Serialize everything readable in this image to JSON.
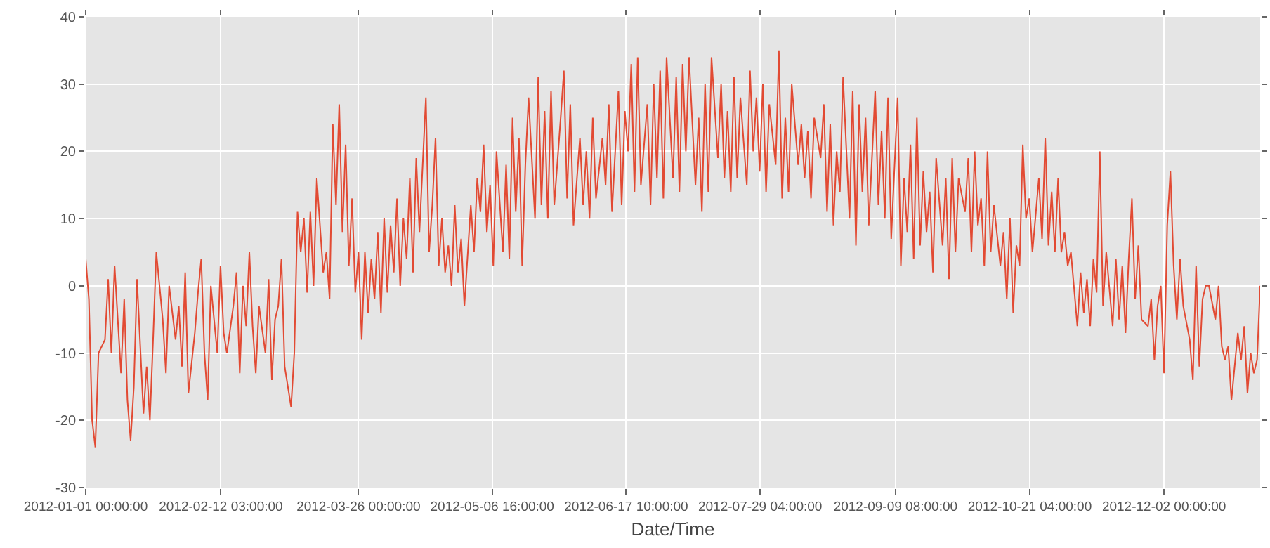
{
  "chart_data": {
    "type": "line",
    "xlabel": "Date/Time",
    "xlim": [
      "2012-01-01T00:00",
      "2012-12-31T23:00"
    ],
    "xticks": [
      {
        "value": "2012-01-01T00:00",
        "label": "2012-01-01 00:00:00"
      },
      {
        "value": "2012-02-12T03:00",
        "label": "2012-02-12 03:00:00"
      },
      {
        "value": "2012-03-26T00:00",
        "label": "2012-03-26 00:00:00"
      },
      {
        "value": "2012-05-06T16:00",
        "label": "2012-05-06 16:00:00"
      },
      {
        "value": "2012-06-17T10:00",
        "label": "2012-06-17 10:00:00"
      },
      {
        "value": "2012-07-29T04:00",
        "label": "2012-07-29 04:00:00"
      },
      {
        "value": "2012-09-09T08:00",
        "label": "2012-09-09 08:00:00"
      },
      {
        "value": "2012-10-21T04:00",
        "label": "2012-10-21 04:00:00"
      },
      {
        "value": "2012-12-02T00:00",
        "label": "2012-12-02 00:00:00"
      }
    ],
    "ylim": [
      -30,
      40
    ],
    "yticks": [
      -30,
      -20,
      -10,
      0,
      10,
      20,
      30,
      40
    ],
    "grid": true,
    "x": [
      "2012-01-01",
      "2012-01-02",
      "2012-01-03",
      "2012-01-04",
      "2012-01-05",
      "2012-01-07",
      "2012-01-08",
      "2012-01-09",
      "2012-01-10",
      "2012-01-12",
      "2012-01-13",
      "2012-01-14",
      "2012-01-15",
      "2012-01-16",
      "2012-01-17",
      "2012-01-19",
      "2012-01-20",
      "2012-01-21",
      "2012-01-22",
      "2012-01-23",
      "2012-01-25",
      "2012-01-26",
      "2012-01-27",
      "2012-01-29",
      "2012-01-30",
      "2012-01-31",
      "2012-02-01",
      "2012-02-02",
      "2012-02-04",
      "2012-02-05",
      "2012-02-06",
      "2012-02-07",
      "2012-02-08",
      "2012-02-09",
      "2012-02-11",
      "2012-02-12",
      "2012-02-13",
      "2012-02-14",
      "2012-02-16",
      "2012-02-17",
      "2012-02-18",
      "2012-02-19",
      "2012-02-20",
      "2012-02-21",
      "2012-02-22",
      "2012-02-23",
      "2012-02-24",
      "2012-02-26",
      "2012-02-27",
      "2012-02-28",
      "2012-02-29",
      "2012-03-01",
      "2012-03-02",
      "2012-03-03",
      "2012-03-05",
      "2012-03-06",
      "2012-03-07",
      "2012-03-08",
      "2012-03-09",
      "2012-03-10",
      "2012-03-11",
      "2012-03-12",
      "2012-03-13",
      "2012-03-15",
      "2012-03-16",
      "2012-03-17",
      "2012-03-18",
      "2012-03-19",
      "2012-03-20",
      "2012-03-21",
      "2012-03-22",
      "2012-03-23",
      "2012-03-24",
      "2012-03-25",
      "2012-03-26",
      "2012-03-27",
      "2012-03-28",
      "2012-03-29",
      "2012-03-30",
      "2012-03-31",
      "2012-04-01",
      "2012-04-02",
      "2012-04-03",
      "2012-04-04",
      "2012-04-05",
      "2012-04-06",
      "2012-04-07",
      "2012-04-08",
      "2012-04-09",
      "2012-04-10",
      "2012-04-11",
      "2012-04-12",
      "2012-04-13",
      "2012-04-14",
      "2012-04-16",
      "2012-04-17",
      "2012-04-18",
      "2012-04-19",
      "2012-04-20",
      "2012-04-21",
      "2012-04-22",
      "2012-04-23",
      "2012-04-24",
      "2012-04-25",
      "2012-04-26",
      "2012-04-27",
      "2012-04-28",
      "2012-04-30",
      "2012-05-01",
      "2012-05-02",
      "2012-05-03",
      "2012-05-04",
      "2012-05-05",
      "2012-05-06",
      "2012-05-07",
      "2012-05-08",
      "2012-05-10",
      "2012-05-11",
      "2012-05-12",
      "2012-05-13",
      "2012-05-14",
      "2012-05-15",
      "2012-05-16",
      "2012-05-17",
      "2012-05-18",
      "2012-05-20",
      "2012-05-21",
      "2012-05-22",
      "2012-05-23",
      "2012-05-24",
      "2012-05-25",
      "2012-05-26",
      "2012-05-28",
      "2012-05-29",
      "2012-05-30",
      "2012-05-31",
      "2012-06-01",
      "2012-06-03",
      "2012-06-04",
      "2012-06-05",
      "2012-06-06",
      "2012-06-07",
      "2012-06-08",
      "2012-06-10",
      "2012-06-11",
      "2012-06-12",
      "2012-06-13",
      "2012-06-15",
      "2012-06-16",
      "2012-06-17",
      "2012-06-18",
      "2012-06-19",
      "2012-06-20",
      "2012-06-21",
      "2012-06-22",
      "2012-06-24",
      "2012-06-25",
      "2012-06-26",
      "2012-06-27",
      "2012-06-28",
      "2012-06-29",
      "2012-06-30",
      "2012-07-02",
      "2012-07-03",
      "2012-07-04",
      "2012-07-05",
      "2012-07-06",
      "2012-07-07",
      "2012-07-09",
      "2012-07-10",
      "2012-07-11",
      "2012-07-12",
      "2012-07-13",
      "2012-07-14",
      "2012-07-16",
      "2012-07-17",
      "2012-07-18",
      "2012-07-19",
      "2012-07-20",
      "2012-07-21",
      "2012-07-22",
      "2012-07-23",
      "2012-07-25",
      "2012-07-26",
      "2012-07-27",
      "2012-07-28",
      "2012-07-29",
      "2012-07-30",
      "2012-07-31",
      "2012-08-01",
      "2012-08-03",
      "2012-08-04",
      "2012-08-05",
      "2012-08-06",
      "2012-08-07",
      "2012-08-08",
      "2012-08-10",
      "2012-08-11",
      "2012-08-12",
      "2012-08-13",
      "2012-08-14",
      "2012-08-15",
      "2012-08-17",
      "2012-08-18",
      "2012-08-19",
      "2012-08-20",
      "2012-08-21",
      "2012-08-22",
      "2012-08-23",
      "2012-08-24",
      "2012-08-26",
      "2012-08-27",
      "2012-08-28",
      "2012-08-29",
      "2012-08-30",
      "2012-08-31",
      "2012-09-01",
      "2012-09-03",
      "2012-09-04",
      "2012-09-05",
      "2012-09-06",
      "2012-09-07",
      "2012-09-08",
      "2012-09-10",
      "2012-09-11",
      "2012-09-12",
      "2012-09-13",
      "2012-09-14",
      "2012-09-15",
      "2012-09-16",
      "2012-09-17",
      "2012-09-18",
      "2012-09-19",
      "2012-09-20",
      "2012-09-21",
      "2012-09-22",
      "2012-09-24",
      "2012-09-25",
      "2012-09-26",
      "2012-09-27",
      "2012-09-28",
      "2012-09-29",
      "2012-10-01",
      "2012-10-02",
      "2012-10-03",
      "2012-10-04",
      "2012-10-05",
      "2012-10-06",
      "2012-10-07",
      "2012-10-08",
      "2012-10-09",
      "2012-10-10",
      "2012-10-12",
      "2012-10-13",
      "2012-10-14",
      "2012-10-15",
      "2012-10-16",
      "2012-10-17",
      "2012-10-18",
      "2012-10-19",
      "2012-10-20",
      "2012-10-21",
      "2012-10-22",
      "2012-10-24",
      "2012-10-25",
      "2012-10-26",
      "2012-10-27",
      "2012-10-28",
      "2012-10-29",
      "2012-10-30",
      "2012-10-31",
      "2012-11-01",
      "2012-11-02",
      "2012-11-03",
      "2012-11-05",
      "2012-11-06",
      "2012-11-07",
      "2012-11-08",
      "2012-11-09",
      "2012-11-10",
      "2012-11-11",
      "2012-11-12",
      "2012-11-13",
      "2012-11-14",
      "2012-11-16",
      "2012-11-17",
      "2012-11-18",
      "2012-11-19",
      "2012-11-20",
      "2012-11-21",
      "2012-11-22",
      "2012-11-23",
      "2012-11-24",
      "2012-11-25",
      "2012-11-27",
      "2012-11-28",
      "2012-11-29",
      "2012-11-30",
      "2012-12-01",
      "2012-12-02",
      "2012-12-03",
      "2012-12-04",
      "2012-12-05",
      "2012-12-06",
      "2012-12-07",
      "2012-12-08",
      "2012-12-10",
      "2012-12-11",
      "2012-12-12",
      "2012-12-13",
      "2012-12-14",
      "2012-12-15",
      "2012-12-16",
      "2012-12-18",
      "2012-12-19",
      "2012-12-20",
      "2012-12-21",
      "2012-12-22",
      "2012-12-23",
      "2012-12-25",
      "2012-12-26",
      "2012-12-27",
      "2012-12-28",
      "2012-12-29",
      "2012-12-30",
      "2012-12-31",
      "2012-12-31T23:00"
    ],
    "series": [
      {
        "color": "#e24a33",
        "values": [
          4,
          -2,
          -20,
          -24,
          -10,
          -8,
          1,
          -10,
          3,
          -13,
          -2,
          -17,
          -23,
          -15,
          1,
          -19,
          -12,
          -20,
          -8,
          5,
          -5,
          -13,
          0,
          -8,
          -3,
          -12,
          2,
          -16,
          -7,
          -1,
          4,
          -10,
          -17,
          0,
          -10,
          3,
          -7,
          -10,
          -3,
          2,
          -13,
          0,
          -6,
          5,
          -6,
          -13,
          -3,
          -10,
          1,
          -14,
          -5,
          -3,
          4,
          -12,
          -18,
          -10,
          11,
          5,
          10,
          -1,
          11,
          0,
          16,
          2,
          5,
          -2,
          24,
          12,
          27,
          8,
          21,
          3,
          13,
          -1,
          5,
          -8,
          5,
          -4,
          4,
          -2,
          8,
          -4,
          10,
          -1,
          9,
          2,
          13,
          0,
          10,
          4,
          16,
          2,
          19,
          8,
          28,
          5,
          12,
          22,
          3,
          10,
          2,
          6,
          0,
          12,
          2,
          7,
          -3,
          12,
          5,
          16,
          11,
          21,
          8,
          15,
          3,
          20,
          5,
          18,
          4,
          25,
          11,
          22,
          3,
          18,
          28,
          10,
          31,
          12,
          26,
          10,
          29,
          12,
          25,
          32,
          13,
          27,
          9,
          22,
          12,
          20,
          10,
          25,
          13,
          22,
          15,
          27,
          11,
          29,
          12,
          26,
          20,
          33,
          14,
          34,
          15,
          27,
          12,
          30,
          16,
          32,
          13,
          34,
          16,
          31,
          14,
          33,
          20,
          34,
          15,
          25,
          11,
          30,
          14,
          34,
          19,
          30,
          16,
          26,
          14,
          31,
          16,
          28,
          15,
          32,
          20,
          28,
          17,
          30,
          14,
          27,
          18,
          35,
          13,
          25,
          14,
          30,
          18,
          24,
          16,
          23,
          13,
          25,
          19,
          27,
          11,
          24,
          9,
          20,
          14,
          31,
          10,
          29,
          6,
          27,
          14,
          25,
          9,
          29,
          12,
          23,
          10,
          28,
          7,
          28,
          3,
          16,
          8,
          21,
          4,
          25,
          6,
          17,
          8,
          14,
          2,
          19,
          6,
          16,
          1,
          19,
          5,
          16,
          11,
          19,
          5,
          20,
          9,
          13,
          3,
          20,
          5,
          12,
          3,
          8,
          -2,
          10,
          -4,
          6,
          3,
          21,
          10,
          13,
          5,
          16,
          7,
          22,
          6,
          14,
          5,
          16,
          5,
          8,
          3,
          5,
          -6,
          2,
          -4,
          1,
          -6,
          4,
          -1,
          20,
          -3,
          5,
          -6,
          4,
          -5,
          3,
          -7,
          4,
          13,
          -2,
          6,
          -5,
          -6,
          -2,
          -11,
          -3,
          0,
          -13,
          9,
          17,
          3,
          -5,
          4,
          -3,
          -8,
          -14,
          3,
          -12,
          -2,
          0,
          0,
          -5,
          0,
          -9,
          -11,
          -9,
          -17,
          -7,
          -11,
          -6,
          -16,
          -10,
          -13,
          -11,
          0
        ]
      }
    ]
  }
}
